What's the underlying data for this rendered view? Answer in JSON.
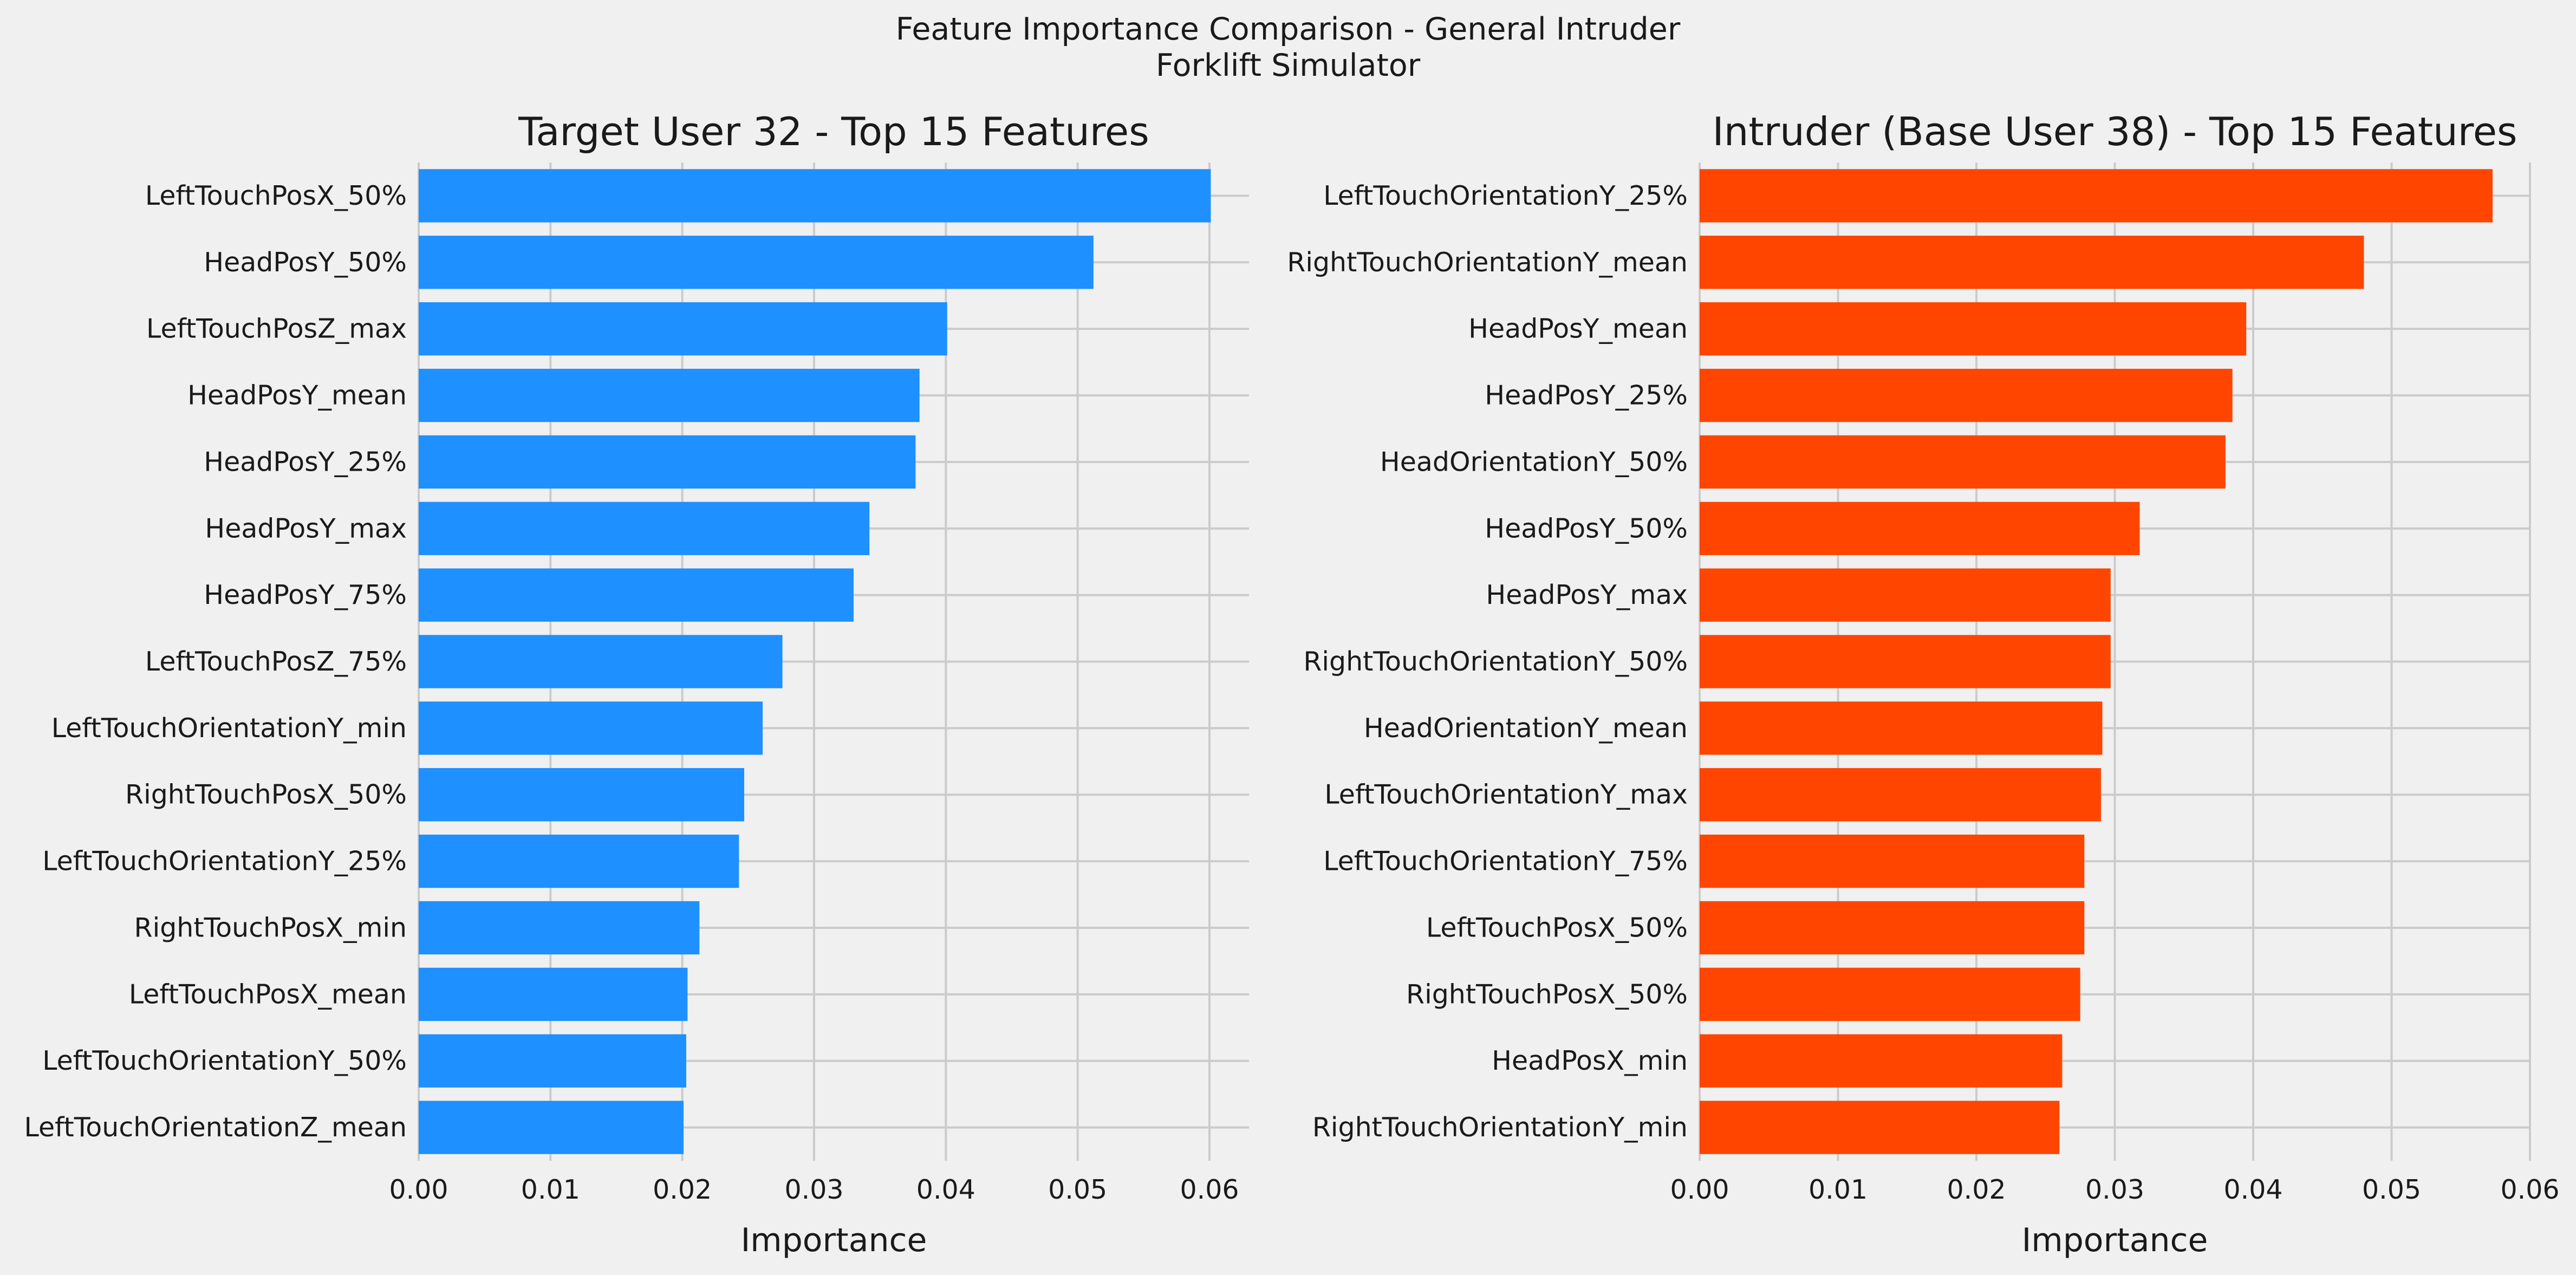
{
  "figure": {
    "title_line1": "Feature Importance Comparison - General Intruder",
    "title_line2": "Forklift Simulator"
  },
  "chart_data": [
    {
      "type": "bar",
      "orientation": "horizontal",
      "title": "Target User 32 - Top 15 Features",
      "xlabel": "Importance",
      "ylabel": "",
      "xlim": [
        0,
        0.063
      ],
      "xticks": [
        0.0,
        0.01,
        0.02,
        0.03,
        0.04,
        0.05,
        0.06
      ],
      "xtick_labels": [
        "0.00",
        "0.01",
        "0.02",
        "0.03",
        "0.04",
        "0.05",
        "0.06"
      ],
      "grid": true,
      "color": "#1e90ff",
      "categories": [
        "LeftTouchPosX_50%",
        "HeadPosY_50%",
        "LeftTouchPosZ_max",
        "HeadPosY_mean",
        "HeadPosY_25%",
        "HeadPosY_max",
        "HeadPosY_75%",
        "LeftTouchPosZ_75%",
        "LeftTouchOrientationY_min",
        "RightTouchPosX_50%",
        "LeftTouchOrientationY_25%",
        "RightTouchPosX_min",
        "LeftTouchPosX_mean",
        "LeftTouchOrientationY_50%",
        "LeftTouchOrientationZ_mean"
      ],
      "values": [
        0.0601,
        0.0512,
        0.0401,
        0.038,
        0.0377,
        0.0342,
        0.033,
        0.0276,
        0.0261,
        0.0247,
        0.0243,
        0.0213,
        0.0204,
        0.0203,
        0.0201
      ]
    },
    {
      "type": "bar",
      "orientation": "horizontal",
      "title": "Intruder (Base User 38) - Top 15 Features",
      "xlabel": "Importance",
      "ylabel": "",
      "xlim": [
        0,
        0.06
      ],
      "xticks": [
        0.0,
        0.01,
        0.02,
        0.03,
        0.04,
        0.05,
        0.06
      ],
      "xtick_labels": [
        "0.00",
        "0.01",
        "0.02",
        "0.03",
        "0.04",
        "0.05",
        "0.06"
      ],
      "grid": true,
      "color": "#ff4500",
      "categories": [
        "LeftTouchOrientationY_25%",
        "RightTouchOrientationY_mean",
        "HeadPosY_mean",
        "HeadPosY_25%",
        "HeadOrientationY_50%",
        "HeadPosY_50%",
        "HeadPosY_max",
        "RightTouchOrientationY_50%",
        "HeadOrientationY_mean",
        "LeftTouchOrientationY_max",
        "LeftTouchOrientationY_75%",
        "LeftTouchPosX_50%",
        "RightTouchPosX_50%",
        "HeadPosX_min",
        "RightTouchOrientationY_min"
      ],
      "values": [
        0.0573,
        0.048,
        0.0395,
        0.0385,
        0.038,
        0.0318,
        0.0297,
        0.0297,
        0.0291,
        0.029,
        0.0278,
        0.0278,
        0.0275,
        0.0262,
        0.026
      ]
    }
  ]
}
